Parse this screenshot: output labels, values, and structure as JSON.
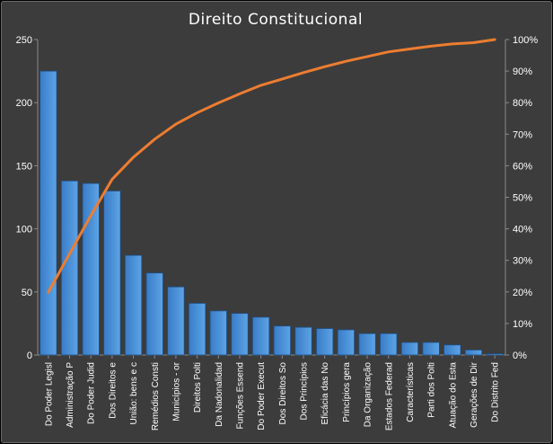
{
  "chart_data": {
    "type": "bar",
    "title": "Direito  Constitucional",
    "categories": [
      "Do Poder Legisl",
      "Administração P",
      "Do Poder Judid",
      "Dos Direitos e",
      "União: bens e c",
      "Remédios Consti",
      "Municípios - or",
      "Direitos Polti",
      "Da Nadonalidad",
      "Funções Essend",
      "Do Poder Execut",
      "Dos Direitos So",
      "Dos Princípios",
      "Eficácia das No",
      "Princípios gera",
      "Da Organização",
      "Estados Federad",
      "Características",
      "Parti dos Polti",
      "Atuação do Esta",
      "Gerações de Dir",
      "Do Distrito Fed"
    ],
    "series": [
      {
        "type": "bar",
        "values": [
          225,
          138,
          136,
          130,
          79,
          65,
          54,
          41,
          35,
          33,
          30,
          23,
          22,
          21,
          20,
          17,
          17,
          10,
          10,
          8,
          4,
          1
        ],
        "color": "#4a90d6"
      },
      {
        "type": "line",
        "axis": "right",
        "values": [
          19.9,
          32.1,
          44.2,
          55.7,
          62.7,
          68.4,
          73.2,
          76.8,
          79.9,
          82.8,
          85.5,
          87.5,
          89.5,
          91.4,
          93.1,
          94.6,
          96.1,
          97.0,
          97.9,
          98.6,
          99.0,
          100.0
        ],
        "color": "#ed7d31"
      }
    ],
    "y_left": {
      "min": 0,
      "max": 250,
      "ticks": [
        "0",
        "50",
        "100",
        "150",
        "200",
        "250"
      ]
    },
    "y_right": {
      "min": 0,
      "max": 100,
      "ticks": [
        "0%",
        "10%",
        "20%",
        "30%",
        "40%",
        "50%",
        "60%",
        "70%",
        "80%",
        "90%",
        "100%"
      ]
    },
    "grid": false,
    "legend": "none"
  }
}
